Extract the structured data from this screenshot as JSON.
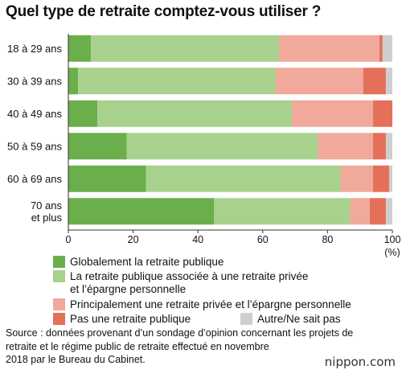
{
  "title": "Quel type de retraite comptez-vous utiliser ?",
  "chart_data": {
    "type": "bar",
    "orientation": "horizontal",
    "stacked": true,
    "categories": [
      "18 à 29 ans",
      "30 à 39 ans",
      "40 à 49 ans",
      "50 à 59 ans",
      "60 à 69 ans",
      "70 ans\net plus"
    ],
    "series": [
      {
        "name": "Globalement la retraite publique",
        "color": "#6aaf4c",
        "values": [
          7,
          3,
          9,
          18,
          24,
          45
        ]
      },
      {
        "name": "La retraite publique associée à une retraite privée\net l’épargne personnelle",
        "color": "#a9d18e",
        "values": [
          58,
          61,
          60,
          59,
          60,
          42
        ]
      },
      {
        "name": "Principalement une retraite privée et l’épargne personnelle",
        "color": "#f0a99a",
        "values": [
          31,
          27,
          25,
          17,
          10,
          6
        ]
      },
      {
        "name": "Pas une retraite publique",
        "color": "#e5705a",
        "values": [
          1,
          7,
          6,
          4,
          5,
          5
        ]
      },
      {
        "name": "Autre/Ne sait pas",
        "color": "#cfcfcf",
        "values": [
          3,
          2,
          0,
          2,
          1,
          2
        ]
      }
    ],
    "xlim": [
      0,
      100
    ],
    "xticks": [
      0,
      20,
      40,
      60,
      80,
      100
    ],
    "x_unit": "(%)",
    "grid": false,
    "legend_position": "bottom"
  },
  "source": "Source : données provenant d’un sondage d’opinion concernant les projets de\nretraite et le régime public de retraite effectué en novembre\n2018 par le Bureau du Cabinet.",
  "brand": "nippon.com"
}
